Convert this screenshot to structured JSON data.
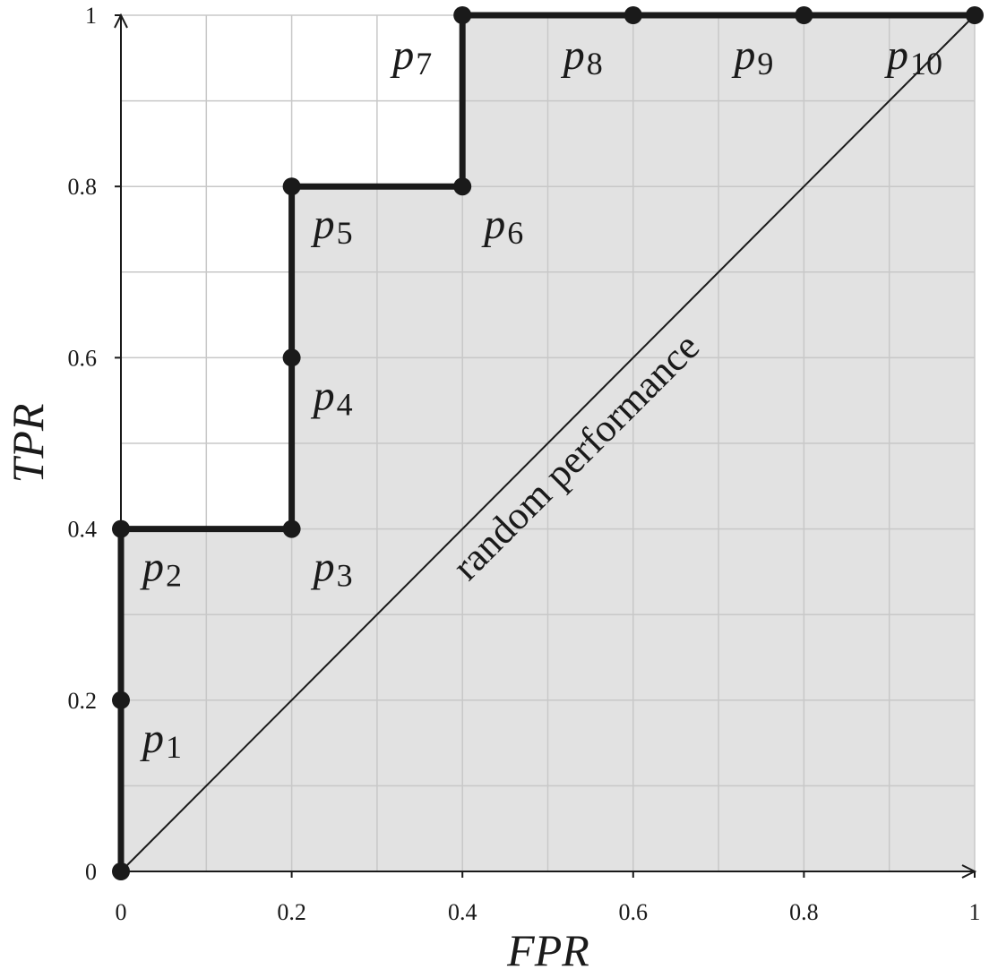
{
  "chart_data": {
    "type": "line",
    "xlabel": "FPR",
    "ylabel": "TPR",
    "xlim": [
      0,
      1
    ],
    "ylim": [
      0,
      1
    ],
    "x_ticks": [
      "0",
      "0.2",
      "0.4",
      "0.6",
      "0.8",
      "1"
    ],
    "y_ticks": [
      "0",
      "0.2",
      "0.4",
      "0.6",
      "0.8",
      "1"
    ],
    "grid": true,
    "grid_step": 0.1,
    "series": [
      {
        "x": [
          0,
          0,
          0,
          0.2,
          0.2,
          0.2,
          0.4,
          0.4,
          0.6,
          0.8,
          1
        ],
        "y": [
          0,
          0.2,
          0.4,
          0.4,
          0.6,
          0.8,
          0.8,
          1,
          1,
          1,
          1
        ],
        "color": "#1a1a1a",
        "fill_under": "#e2e2e2"
      }
    ],
    "point_labels": [
      {
        "p": "p",
        "sub": "1",
        "x": 0,
        "y": 0.2
      },
      {
        "p": "p",
        "sub": "2",
        "x": 0,
        "y": 0.4
      },
      {
        "p": "p",
        "sub": "3",
        "x": 0.2,
        "y": 0.4
      },
      {
        "p": "p",
        "sub": "4",
        "x": 0.2,
        "y": 0.6
      },
      {
        "p": "p",
        "sub": "5",
        "x": 0.2,
        "y": 0.8
      },
      {
        "p": "p",
        "sub": "6",
        "x": 0.4,
        "y": 0.8
      },
      {
        "p": "p",
        "sub": "7",
        "x": 0.4,
        "y": 1
      },
      {
        "p": "p",
        "sub": "8",
        "x": 0.6,
        "y": 1
      },
      {
        "p": "p",
        "sub": "9",
        "x": 0.8,
        "y": 1
      },
      {
        "p": "p",
        "sub": "10",
        "x": 1,
        "y": 1
      }
    ],
    "reference_line": {
      "x": [
        0,
        1
      ],
      "y": [
        0,
        1
      ],
      "label": "random performance"
    },
    "colors": {
      "grid": "#c8c8c8",
      "fill": "#e2e2e2",
      "axis": "#1a1a1a"
    }
  }
}
